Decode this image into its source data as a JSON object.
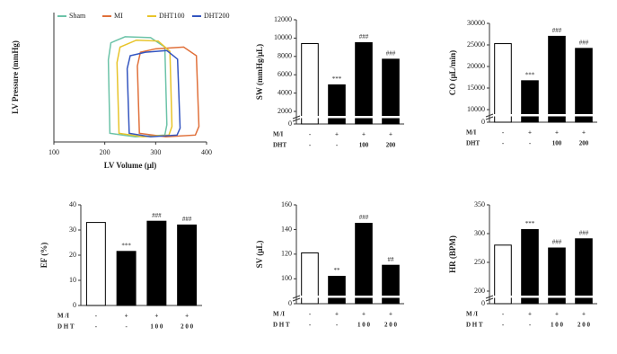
{
  "chart_data": [
    {
      "type": "line",
      "xlabel": "LV Volume (μl)",
      "ylabel": "LV Pressure (mmHg)",
      "xlim": [
        100,
        400
      ],
      "xticks": [
        100,
        200,
        300,
        400
      ],
      "ylim": [
        0,
        150
      ],
      "series": [
        {
          "name": "Sham",
          "color": "#6cc3a8",
          "x": [
            210,
            207,
            212,
            240,
            290,
            318,
            322,
            318,
            260,
            210
          ],
          "values": [
            10,
            95,
            115,
            122,
            121,
            110,
            20,
            8,
            6,
            10
          ]
        },
        {
          "name": "MI",
          "color": "#e0703a",
          "x": [
            268,
            264,
            270,
            300,
            355,
            380,
            385,
            378,
            320,
            268
          ],
          "values": [
            10,
            88,
            104,
            108,
            110,
            100,
            18,
            8,
            6,
            10
          ]
        },
        {
          "name": "DHT100",
          "color": "#e8c42a",
          "x": [
            228,
            224,
            230,
            262,
            305,
            328,
            332,
            326,
            275,
            228
          ],
          "values": [
            10,
            92,
            110,
            118,
            117,
            105,
            18,
            8,
            6,
            10
          ]
        },
        {
          "name": "DHT200",
          "color": "#3355c0",
          "x": [
            248,
            244,
            250,
            280,
            322,
            343,
            348,
            342,
            290,
            248
          ],
          "values": [
            10,
            85,
            100,
            104,
            106,
            96,
            16,
            8,
            6,
            10
          ]
        }
      ]
    },
    {
      "type": "bar",
      "ylabel": "SW (mmHg/μL)",
      "axis_break": true,
      "ylim": [
        2000,
        12000
      ],
      "yticks": [
        0,
        2000,
        4000,
        6000,
        8000,
        10000,
        12000
      ],
      "values": [
        9400,
        4900,
        9500,
        7700
      ],
      "colors": [
        "#ffffff",
        "#000000",
        "#000000",
        "#000000"
      ],
      "annotations": [
        null,
        "***",
        "###",
        "###"
      ],
      "rows": [
        {
          "label": "M/I",
          "values": [
            "-",
            "+",
            "+",
            "+"
          ]
        },
        {
          "label": "DHT",
          "values": [
            "-",
            "-",
            "100",
            "200"
          ]
        }
      ]
    },
    {
      "type": "bar",
      "ylabel": "CO (μL/min)",
      "axis_break": true,
      "ylim": [
        10000,
        30000
      ],
      "yticks": [
        0,
        10000,
        15000,
        20000,
        25000,
        30000
      ],
      "values": [
        25300,
        16700,
        27000,
        24200
      ],
      "colors": [
        "#ffffff",
        "#000000",
        "#000000",
        "#000000"
      ],
      "annotations": [
        null,
        "***",
        "###",
        "###"
      ],
      "rows": [
        {
          "label": "M/I",
          "values": [
            "-",
            "+",
            "+",
            "+"
          ]
        },
        {
          "label": "DHT",
          "values": [
            "-",
            "-",
            "100",
            "200"
          ]
        }
      ]
    },
    {
      "type": "bar",
      "ylabel": "EF (%)",
      "axis_break": false,
      "ylim": [
        0,
        40
      ],
      "yticks": [
        0,
        10,
        20,
        30,
        40
      ],
      "values": [
        33,
        21.5,
        33.5,
        32
      ],
      "colors": [
        "#ffffff",
        "#000000",
        "#000000",
        "#000000"
      ],
      "annotations": [
        null,
        "***",
        "###",
        "###"
      ],
      "rows": [
        {
          "label": "M /I",
          "values": [
            "-",
            "+",
            "+",
            "+"
          ]
        },
        {
          "label": "D H T",
          "values": [
            "-",
            "-",
            "1 0 0",
            "2 0 0"
          ]
        }
      ]
    },
    {
      "type": "bar",
      "ylabel": "SV (μL)",
      "axis_break": true,
      "ylim": [
        90,
        160
      ],
      "yticks": [
        0,
        100,
        120,
        140,
        160
      ],
      "values": [
        121,
        102,
        145,
        111
      ],
      "colors": [
        "#ffffff",
        "#000000",
        "#000000",
        "#000000"
      ],
      "annotations": [
        null,
        "**",
        "###",
        "##"
      ],
      "rows": [
        {
          "label": "M /I",
          "values": [
            "-",
            "+",
            "+",
            "+"
          ]
        },
        {
          "label": "D H T",
          "values": [
            "-",
            "-",
            "1 0 0",
            "2 0 0"
          ]
        }
      ]
    },
    {
      "type": "bar",
      "ylabel": "HR (BPM)",
      "axis_break": true,
      "ylim": [
        200,
        350
      ],
      "yticks": [
        0,
        200,
        250,
        300,
        350
      ],
      "values": [
        280,
        307,
        275,
        291
      ],
      "colors": [
        "#ffffff",
        "#000000",
        "#000000",
        "#000000"
      ],
      "annotations": [
        null,
        "***",
        "###",
        "###"
      ],
      "rows": [
        {
          "label": "M /I",
          "values": [
            "-",
            "+",
            "+",
            "+"
          ]
        },
        {
          "label": "D H T",
          "values": [
            "-",
            "-",
            "1 0 0",
            "2 0 0"
          ]
        }
      ]
    }
  ]
}
